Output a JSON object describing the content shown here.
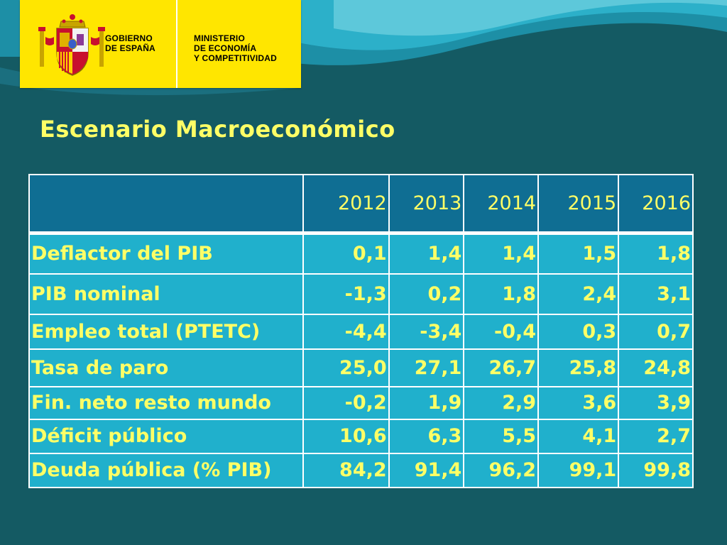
{
  "logo": {
    "gov_lines": [
      "GOBIERNO",
      "DE ESPAÑA"
    ],
    "ministry_lines": [
      "MINISTERIO",
      "DE ECONOMÍA",
      "Y COMPETITIVIDAD"
    ],
    "emblem": "spain-coat-of-arms-icon",
    "background_color": "#ffe600"
  },
  "slide": {
    "title": "Escenario Macroeconómico",
    "background_color": "#145a63",
    "text_color": "#ffff66"
  },
  "table": {
    "header": [
      "",
      "2012",
      "2013",
      "2014",
      "2015",
      "2016"
    ],
    "rows": [
      {
        "label": "Deflactor del PIB",
        "values": [
          "0,1",
          "1,4",
          "1,4",
          "1,5",
          "1,8"
        ]
      },
      {
        "label": "PIB nominal",
        "values": [
          "-1,3",
          "0,2",
          "1,8",
          "2,4",
          "3,1"
        ]
      },
      {
        "label": "Empleo total (PTETC)",
        "values": [
          "-4,4",
          "-3,4",
          "-0,4",
          "0,3",
          "0,7"
        ]
      },
      {
        "label": "Tasa de paro",
        "values": [
          "25,0",
          "27,1",
          "26,7",
          "25,8",
          "24,8"
        ]
      },
      {
        "label": "Fin. neto resto mundo",
        "values": [
          "-0,2",
          "1,9",
          "2,9",
          "3,6",
          "3,9"
        ]
      },
      {
        "label": "Déficit público",
        "values": [
          "10,6",
          "6,3",
          "5,5",
          "4,1",
          "2,7"
        ]
      },
      {
        "label": "Deuda pública (% PIB)",
        "values": [
          "84,2",
          "91,4",
          "96,2",
          "99,1",
          "99,8"
        ]
      }
    ],
    "header_color": "#0f6e93",
    "body_color": "#20b0cc"
  }
}
